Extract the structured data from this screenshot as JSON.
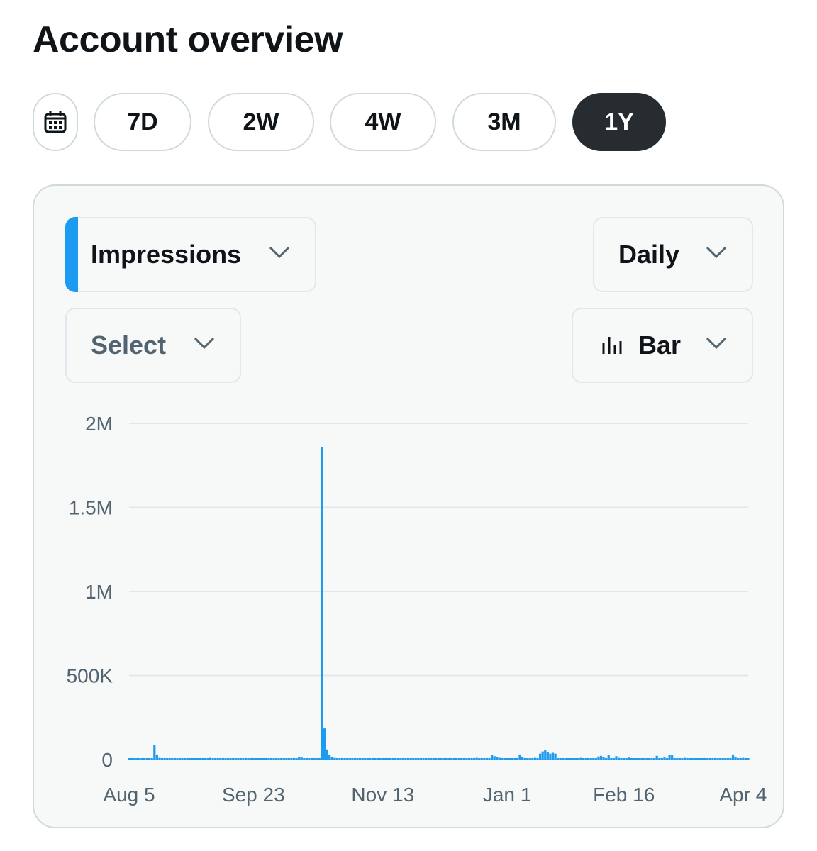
{
  "page": {
    "title": "Account overview"
  },
  "range_buttons": [
    {
      "label": "7D",
      "active": false
    },
    {
      "label": "2W",
      "active": false
    },
    {
      "label": "4W",
      "active": false
    },
    {
      "label": "3M",
      "active": false
    },
    {
      "label": "1Y",
      "active": true
    }
  ],
  "icons": {
    "calendar": "calendar-icon",
    "chevron": "chevron-down-icon",
    "bar_chart": "bar-chart-icon"
  },
  "controls": {
    "metric": "Impressions",
    "interval": "Daily",
    "compare": "Select",
    "chart_type": "Bar"
  },
  "colors": {
    "accent": "#1d9bf0",
    "active_pill": "#272c30",
    "grid": "#e1e8ed"
  },
  "chart_data": {
    "type": "bar",
    "ylim": [
      0,
      2000000
    ],
    "y_ticks": [
      "0",
      "500K",
      "1M",
      "1.5M",
      "2M"
    ],
    "y_tick_values": [
      0,
      500000,
      1000000,
      1500000,
      2000000
    ],
    "x_tick_labels": [
      "Aug 5",
      "Sep 23",
      "Nov 13",
      "Jan 1",
      "Feb 16",
      "Apr 4"
    ],
    "x_tick_days": [
      0,
      49,
      100,
      149,
      195,
      242
    ],
    "days": 245,
    "values": [
      3000,
      3000,
      3000,
      3000,
      3000,
      3000,
      3000,
      3000,
      3000,
      3000,
      85000,
      30000,
      10000,
      5000,
      4000,
      3000,
      3000,
      3000,
      3000,
      3000,
      4000,
      3000,
      3000,
      3000,
      3000,
      8000,
      3000,
      3000,
      3000,
      3000,
      3000,
      3000,
      10000,
      3000,
      3000,
      3000,
      3000,
      3000,
      3000,
      3000,
      3000,
      3000,
      3000,
      3000,
      3000,
      3000,
      3000,
      3000,
      3000,
      3000,
      3000,
      3000,
      3000,
      3000,
      3000,
      3000,
      3000,
      3000,
      3000,
      3000,
      3000,
      3000,
      3000,
      3000,
      3000,
      3000,
      3000,
      3000,
      3000,
      3000,
      3000,
      3000,
      3000,
      3000,
      3000,
      3000,
      3000,
      3000,
      3000,
      3000,
      3000,
      3000,
      3000,
      3000,
      3000,
      3000,
      3000,
      3000,
      3000,
      3000,
      3000,
      3000,
      3000,
      3000,
      3000,
      3000,
      3000,
      3000,
      3000,
      3000,
      3000,
      3000,
      3000,
      3000,
      3000,
      3000,
      3000,
      3000,
      3000,
      3000,
      3000,
      3000,
      3000,
      3000,
      3000,
      3000,
      3000,
      3000,
      3000,
      3000,
      3000,
      3000,
      3000,
      3000,
      3000,
      3000,
      3000,
      3000,
      3000,
      3000,
      3000,
      3000,
      3000,
      3000,
      3000,
      3000,
      3000,
      3000,
      3000,
      3000,
      3000,
      3000,
      3000,
      3000,
      3000,
      3000,
      3000,
      3000,
      3000,
      3000,
      3000,
      3000,
      3000,
      3000,
      3000,
      3000,
      3000,
      3000,
      3000,
      3000,
      3000,
      3000,
      3000,
      3000,
      3000,
      3000,
      3000,
      3000,
      3000,
      3000,
      3000,
      3000,
      3000,
      3000,
      3000,
      3000,
      3000,
      3000,
      3000,
      3000,
      3000,
      3000,
      3000,
      3000,
      3000,
      3000,
      3000,
      3000,
      3000,
      3000,
      3000,
      3000,
      3000,
      3000,
      3000,
      3000,
      3000,
      3000,
      3000,
      3000,
      3000,
      3000,
      3000,
      3000,
      3000,
      3000,
      3000,
      3000,
      3000,
      3000,
      3000,
      3000,
      3000,
      3000,
      3000,
      3000,
      3000,
      3000,
      3000,
      3000,
      3000,
      3000,
      3000,
      3000,
      3000,
      3000,
      3000,
      3000,
      3000,
      3000,
      3000,
      3000,
      3000,
      3000,
      3000,
      3000,
      3000,
      3000,
      3000,
      3000,
      3000,
      3000,
      3000,
      3000,
      3000
    ],
    "overrides": [
      [
        67,
        15000
      ],
      [
        68,
        12000
      ],
      [
        69,
        8000
      ],
      [
        76,
        1860000
      ],
      [
        77,
        185000
      ],
      [
        78,
        60000
      ],
      [
        79,
        30000
      ],
      [
        80,
        15000
      ],
      [
        81,
        10000
      ],
      [
        82,
        8000
      ],
      [
        93,
        6000
      ],
      [
        103,
        5000
      ],
      [
        137,
        10000
      ],
      [
        138,
        8000
      ],
      [
        143,
        28000
      ],
      [
        144,
        20000
      ],
      [
        145,
        15000
      ],
      [
        146,
        10000
      ],
      [
        154,
        30000
      ],
      [
        155,
        15000
      ],
      [
        160,
        10000
      ],
      [
        162,
        35000
      ],
      [
        163,
        48000
      ],
      [
        164,
        55000
      ],
      [
        165,
        45000
      ],
      [
        166,
        35000
      ],
      [
        167,
        40000
      ],
      [
        168,
        35000
      ],
      [
        171,
        8000
      ],
      [
        178,
        10000
      ],
      [
        185,
        18000
      ],
      [
        186,
        22000
      ],
      [
        187,
        15000
      ],
      [
        189,
        28000
      ],
      [
        192,
        20000
      ],
      [
        193,
        10000
      ],
      [
        197,
        12000
      ],
      [
        200,
        8000
      ],
      [
        208,
        22000
      ],
      [
        211,
        12000
      ],
      [
        213,
        28000
      ],
      [
        214,
        25000
      ],
      [
        219,
        10000
      ],
      [
        225,
        8000
      ],
      [
        232,
        8000
      ],
      [
        238,
        30000
      ],
      [
        239,
        15000
      ],
      [
        242,
        10000
      ],
      [
        243,
        8000
      ]
    ]
  }
}
